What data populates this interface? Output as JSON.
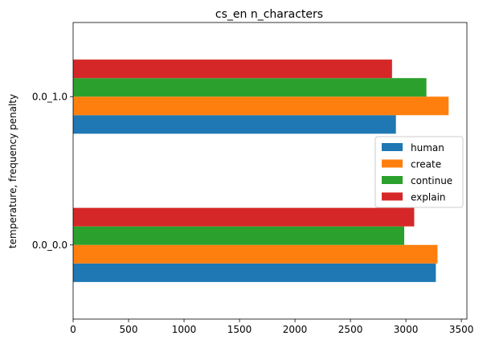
{
  "chart_data": {
    "type": "bar",
    "orientation": "horizontal",
    "title": "cs_en n_characters",
    "xlabel": "",
    "ylabel": "temperature, frequency penalty",
    "categories": [
      "0.0_0.0",
      "0.0_1.0"
    ],
    "series": [
      {
        "name": "human",
        "color": "#1f77b4",
        "values": [
          3270,
          2910
        ]
      },
      {
        "name": "create",
        "color": "#ff7f0e",
        "values": [
          3285,
          3385
        ]
      },
      {
        "name": "continue",
        "color": "#2ca02c",
        "values": [
          2985,
          3185
        ]
      },
      {
        "name": "explain",
        "color": "#d62728",
        "values": [
          3075,
          2875
        ]
      }
    ],
    "xlim": [
      0,
      3550
    ],
    "xticks": [
      0,
      500,
      1000,
      1500,
      2000,
      2500,
      3000,
      3500
    ],
    "grid": false,
    "legend_position": "center-right"
  }
}
